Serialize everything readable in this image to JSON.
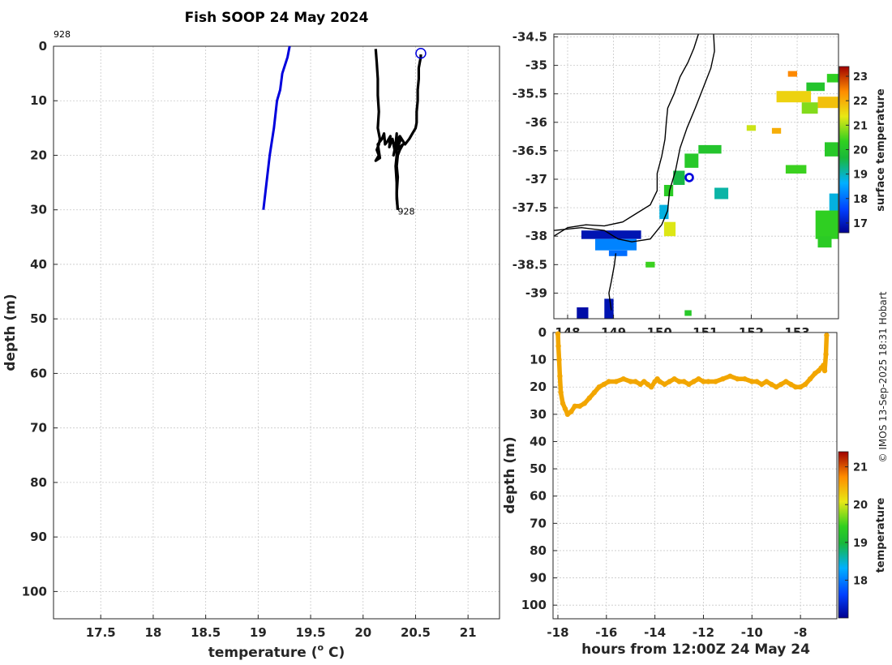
{
  "title": "Fish SOOP 24 May 2024",
  "credit": "© IMOS 13-Sep-2025 18:31 Hobart",
  "colors": {
    "profile_blue": "#0000dd",
    "profile_black": "#000000",
    "coast": "#000000",
    "track": "#f2a600",
    "marker": "#0000dd"
  },
  "chart_data": [
    {
      "id": "profile",
      "type": "line",
      "xlabel": "temperature (o C)",
      "xlabel_main": "temperature (",
      "xlabel_sup": "o",
      "xlabel_end": " C)",
      "ylabel": "depth (m)",
      "xlim": [
        17.05,
        21.3
      ],
      "ylim": [
        0,
        105
      ],
      "xticks": [
        17.5,
        18,
        18.5,
        19,
        19.5,
        20,
        20.5,
        21
      ],
      "xtick_labels": [
        "17.5",
        "18",
        "18.5",
        "19",
        "19.5",
        "20",
        "20.5",
        "21"
      ],
      "yticks": [
        0,
        10,
        20,
        30,
        40,
        50,
        60,
        70,
        80,
        90,
        100
      ],
      "ytick_labels": [
        "0",
        "10",
        "20",
        "30",
        "40",
        "50",
        "60",
        "70",
        "80",
        "90",
        "100"
      ],
      "annotations": [
        {
          "text": "928",
          "x": 17.05,
          "y": -2.2
        },
        {
          "text": "928",
          "x": 20.33,
          "y": 30.3
        }
      ],
      "series": [
        {
          "name": "reference",
          "color": "#0000dd",
          "x": [
            19.3,
            19.28,
            19.23,
            19.21,
            19.18,
            19.15,
            19.11,
            19.08,
            19.05
          ],
          "y": [
            0,
            2,
            5,
            8,
            10,
            15,
            20,
            25,
            30
          ]
        },
        {
          "name": "down",
          "color": "#000000",
          "x": [
            20.12,
            20.13,
            20.14,
            20.14,
            20.15,
            20.14,
            20.15,
            20.16,
            20.15,
            20.13,
            20.15,
            20.12,
            20.16,
            20.14,
            20.18,
            20.2,
            20.21,
            20.23,
            20.26,
            20.25,
            20.28,
            20.3,
            20.29,
            20.31,
            20.32,
            20.32,
            20.31,
            20.32,
            20.32,
            20.33
          ],
          "y": [
            0.5,
            3,
            6,
            9,
            12,
            15,
            16,
            17,
            18,
            19,
            20,
            21,
            20.5,
            18,
            17,
            16,
            18,
            17.5,
            16.5,
            18.5,
            17,
            19,
            20,
            18,
            16,
            20,
            22,
            25,
            28,
            30
          ]
        },
        {
          "name": "up",
          "color": "#000000",
          "x": [
            20.33,
            20.32,
            20.33,
            20.32,
            20.33,
            20.35,
            20.38,
            20.32,
            20.36,
            20.3,
            20.35,
            20.4,
            20.44,
            20.47,
            20.5,
            20.51,
            20.51,
            20.52,
            20.52,
            20.53,
            20.53,
            20.54,
            20.55,
            20.55
          ],
          "y": [
            30,
            27,
            24,
            22,
            20,
            19,
            18,
            19,
            17,
            18,
            16.5,
            18,
            17,
            16,
            15,
            14,
            12,
            10,
            8,
            6,
            4,
            3,
            2,
            1.5
          ]
        }
      ],
      "marker": {
        "x": 20.55,
        "y": 1.3
      }
    },
    {
      "id": "sst_map",
      "type": "heatmap",
      "xlim": [
        147.7,
        153.9
      ],
      "ylim": [
        -39.45,
        -34.45
      ],
      "xticks": [
        148,
        149,
        150,
        151,
        152,
        153
      ],
      "xtick_labels": [
        "148",
        "149",
        "150",
        "151",
        "152",
        "153"
      ],
      "yticks": [
        -34.5,
        -35,
        -35.5,
        -36,
        -36.5,
        -37,
        -37.5,
        -38,
        -38.5,
        -39
      ],
      "ytick_labels": [
        "-34.5",
        "-35",
        "-35.5",
        "-36",
        "-36.5",
        "-37",
        "-37.5",
        "-38",
        "-38.5",
        "-39"
      ],
      "colorbar": {
        "label": "surface temperature",
        "range": [
          16.6,
          23.4
        ],
        "ticks": [
          17,
          18,
          19,
          20,
          21,
          22,
          23
        ],
        "tick_labels": [
          "17",
          "18",
          "19",
          "20",
          "21",
          "22",
          "23"
        ]
      },
      "marker": {
        "lon": 150.65,
        "lat": -36.97
      },
      "coast": [
        [
          147.7,
          -38.0
        ],
        [
          148.0,
          -37.85
        ],
        [
          148.4,
          -37.8
        ],
        [
          148.8,
          -37.82
        ],
        [
          149.2,
          -37.75
        ],
        [
          149.5,
          -37.6
        ],
        [
          149.8,
          -37.45
        ],
        [
          149.95,
          -37.2
        ],
        [
          149.95,
          -36.9
        ],
        [
          150.05,
          -36.6
        ],
        [
          150.12,
          -36.3
        ],
        [
          150.15,
          -36.0
        ],
        [
          150.18,
          -35.75
        ],
        [
          150.32,
          -35.5
        ],
        [
          150.45,
          -35.2
        ],
        [
          150.62,
          -34.95
        ],
        [
          150.75,
          -34.7
        ],
        [
          150.85,
          -34.45
        ]
      ],
      "coast2": [
        [
          149.05,
          -38.3
        ],
        [
          149.02,
          -38.5
        ],
        [
          148.95,
          -38.8
        ],
        [
          148.9,
          -39.0
        ],
        [
          148.95,
          -39.3
        ]
      ],
      "shelf": [
        [
          147.7,
          -37.9
        ],
        [
          148.3,
          -37.85
        ],
        [
          148.8,
          -37.9
        ],
        [
          149.1,
          -38.05
        ],
        [
          149.4,
          -38.1
        ],
        [
          149.8,
          -38.05
        ],
        [
          150.05,
          -37.8
        ],
        [
          150.18,
          -37.55
        ],
        [
          150.22,
          -37.2
        ],
        [
          150.35,
          -36.85
        ],
        [
          150.45,
          -36.45
        ],
        [
          150.6,
          -36.1
        ],
        [
          150.78,
          -35.75
        ],
        [
          150.95,
          -35.4
        ],
        [
          151.12,
          -35.05
        ],
        [
          151.2,
          -34.75
        ],
        [
          151.18,
          -34.45
        ]
      ],
      "patches": [
        {
          "lon": [
            148.3,
            149.6
          ],
          "lat": [
            -38.05,
            -37.9
          ],
          "temp": 16.9
        },
        {
          "lon": [
            148.6,
            149.5
          ],
          "lat": [
            -38.25,
            -38.05
          ],
          "temp": 18.2
        },
        {
          "lon": [
            148.9,
            149.3
          ],
          "lat": [
            -38.35,
            -38.25
          ],
          "temp": 18.0
        },
        {
          "lon": [
            148.2,
            148.45
          ],
          "lat": [
            -39.45,
            -39.25
          ],
          "temp": 16.8
        },
        {
          "lon": [
            148.8,
            149.0
          ],
          "lat": [
            -39.45,
            -39.1
          ],
          "temp": 16.9
        },
        {
          "lon": [
            150.0,
            150.2
          ],
          "lat": [
            -37.7,
            -37.45
          ],
          "temp": 18.8
        },
        {
          "lon": [
            150.1,
            150.3
          ],
          "lat": [
            -37.3,
            -37.1
          ],
          "temp": 20.2
        },
        {
          "lon": [
            150.3,
            150.55
          ],
          "lat": [
            -37.1,
            -36.85
          ],
          "temp": 19.6
        },
        {
          "lon": [
            150.55,
            150.85
          ],
          "lat": [
            -36.8,
            -36.55
          ],
          "temp": 20.1
        },
        {
          "lon": [
            150.85,
            151.35
          ],
          "lat": [
            -36.55,
            -36.4
          ],
          "temp": 20.0
        },
        {
          "lon": [
            150.1,
            150.35
          ],
          "lat": [
            -38.0,
            -37.75
          ],
          "temp": 21.3
        },
        {
          "lon": [
            151.2,
            151.5
          ],
          "lat": [
            -37.35,
            -37.15
          ],
          "temp": 19.1
        },
        {
          "lon": [
            152.55,
            153.3
          ],
          "lat": [
            -35.65,
            -35.45
          ],
          "temp": 21.6
        },
        {
          "lon": [
            153.2,
            153.6
          ],
          "lat": [
            -35.45,
            -35.3
          ],
          "temp": 20.0
        },
        {
          "lon": [
            153.1,
            153.45
          ],
          "lat": [
            -35.85,
            -35.65
          ],
          "temp": 20.8
        },
        {
          "lon": [
            153.45,
            153.9
          ],
          "lat": [
            -35.75,
            -35.55
          ],
          "temp": 21.8
        },
        {
          "lon": [
            152.8,
            153.0
          ],
          "lat": [
            -35.2,
            -35.1
          ],
          "temp": 22.4
        },
        {
          "lon": [
            153.65,
            153.9
          ],
          "lat": [
            -35.3,
            -35.15
          ],
          "temp": 20.3
        },
        {
          "lon": [
            151.9,
            152.1
          ],
          "lat": [
            -36.15,
            -36.05
          ],
          "temp": 21.2
        },
        {
          "lon": [
            152.45,
            152.65
          ],
          "lat": [
            -36.2,
            -36.1
          ],
          "temp": 22.0
        },
        {
          "lon": [
            152.75,
            153.2
          ],
          "lat": [
            -36.9,
            -36.75
          ],
          "temp": 20.4
        },
        {
          "lon": [
            153.6,
            153.9
          ],
          "lat": [
            -36.6,
            -36.35
          ],
          "temp": 20.1
        },
        {
          "lon": [
            153.7,
            153.9
          ],
          "lat": [
            -37.6,
            -37.25
          ],
          "temp": 18.8
        },
        {
          "lon": [
            153.4,
            153.9
          ],
          "lat": [
            -38.05,
            -37.55
          ],
          "temp": 20.3
        },
        {
          "lon": [
            153.45,
            153.75
          ],
          "lat": [
            -38.2,
            -38.0
          ],
          "temp": 20.2
        },
        {
          "lon": [
            150.55,
            150.7
          ],
          "lat": [
            -39.4,
            -39.3
          ],
          "temp": 20.1
        },
        {
          "lon": [
            149.7,
            149.9
          ],
          "lat": [
            -38.55,
            -38.45
          ],
          "temp": 20.4
        }
      ]
    },
    {
      "id": "track",
      "type": "scatter",
      "xlabel": "hours from 12:00Z 24 May 24",
      "ylabel": "depth (m)",
      "xlim": [
        -18.2,
        -6.5
      ],
      "ylim": [
        0,
        105
      ],
      "xticks": [
        -18,
        -16,
        -14,
        -12,
        -10,
        -8
      ],
      "xtick_labels": [
        "-18",
        "-16",
        "-14",
        "-12",
        "-10",
        "-8"
      ],
      "yticks": [
        0,
        10,
        20,
        30,
        40,
        50,
        60,
        70,
        80,
        90,
        100
      ],
      "ytick_labels": [
        "0",
        "10",
        "20",
        "30",
        "40",
        "50",
        "60",
        "70",
        "80",
        "90",
        "100"
      ],
      "colorbar": {
        "label": "temperature",
        "range": [
          17.0,
          21.4
        ],
        "ticks": [
          18,
          19,
          20,
          21
        ],
        "tick_labels": [
          "18",
          "19",
          "20",
          "21"
        ]
      },
      "series": [
        {
          "name": "logger depth",
          "temperature": 20.2,
          "x": [
            -18.0,
            -17.98,
            -17.95,
            -17.92,
            -17.88,
            -17.8,
            -17.7,
            -17.6,
            -17.45,
            -17.3,
            -17.1,
            -16.9,
            -16.7,
            -16.5,
            -16.3,
            -16.1,
            -15.9,
            -15.6,
            -15.3,
            -15.0,
            -14.8,
            -14.6,
            -14.45,
            -14.3,
            -14.15,
            -14.0,
            -13.9,
            -13.8,
            -13.6,
            -13.4,
            -13.2,
            -13.0,
            -12.8,
            -12.6,
            -12.4,
            -12.2,
            -12.0,
            -11.8,
            -11.5,
            -11.2,
            -10.9,
            -10.6,
            -10.3,
            -10.0,
            -9.8,
            -9.6,
            -9.4,
            -9.2,
            -9.0,
            -8.8,
            -8.6,
            -8.4,
            -8.2,
            -8.0,
            -7.8,
            -7.6,
            -7.4,
            -7.25,
            -7.15,
            -7.05,
            -7.0,
            -6.95,
            -6.92
          ],
          "y": [
            0.5,
            5,
            10,
            16,
            22,
            26,
            28,
            30,
            29,
            27,
            27,
            26,
            24,
            22,
            20,
            19,
            18,
            18,
            17,
            18,
            18,
            19,
            18,
            19,
            20,
            18,
            17,
            18,
            19,
            18,
            17,
            18,
            18,
            19,
            18,
            17,
            18,
            18,
            18,
            17,
            16,
            17,
            17,
            18,
            18,
            19,
            18,
            19,
            20,
            19,
            18,
            19,
            20,
            20,
            19,
            17,
            15,
            14,
            13,
            12,
            14,
            8,
            1
          ]
        }
      ]
    }
  ]
}
